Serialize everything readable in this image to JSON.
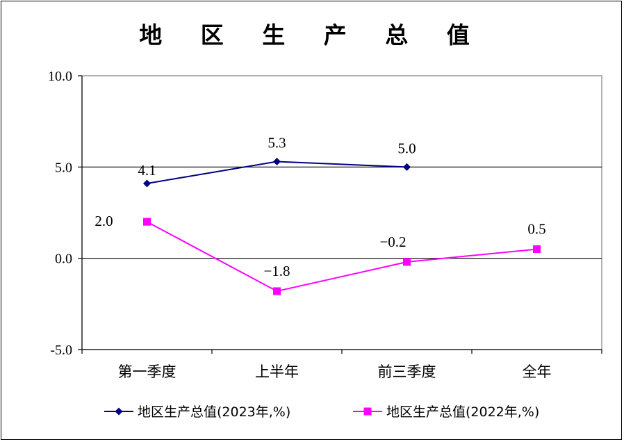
{
  "chart_data": {
    "type": "line",
    "title": "地 区 生 产 总 值",
    "categories": [
      "第一季度",
      "上半年",
      "前三季度",
      "全年"
    ],
    "series": [
      {
        "name": "地区生产总值(2023年,%)",
        "values": [
          4.1,
          5.3,
          5.0,
          null
        ],
        "labels": [
          "4.1",
          "5.3",
          "5.0",
          null
        ],
        "color": "#000080",
        "marker": "diamond"
      },
      {
        "name": "地区生产总值(2022年,%)",
        "values": [
          2.0,
          -1.8,
          -0.2,
          0.5
        ],
        "labels": [
          "2.0",
          "−1.8",
          "−0.2",
          "0.5"
        ],
        "color": "#ff00ff",
        "marker": "square"
      }
    ],
    "ylim": [
      -5.0,
      10.0
    ],
    "yticks": [
      10.0,
      5.0,
      0.0,
      -5.0
    ],
    "ytick_labels": [
      "10.0",
      "5.0",
      "0.0",
      "-5.0"
    ],
    "gridlines": [
      5.0,
      0.0
    ],
    "legend": "bottom"
  }
}
